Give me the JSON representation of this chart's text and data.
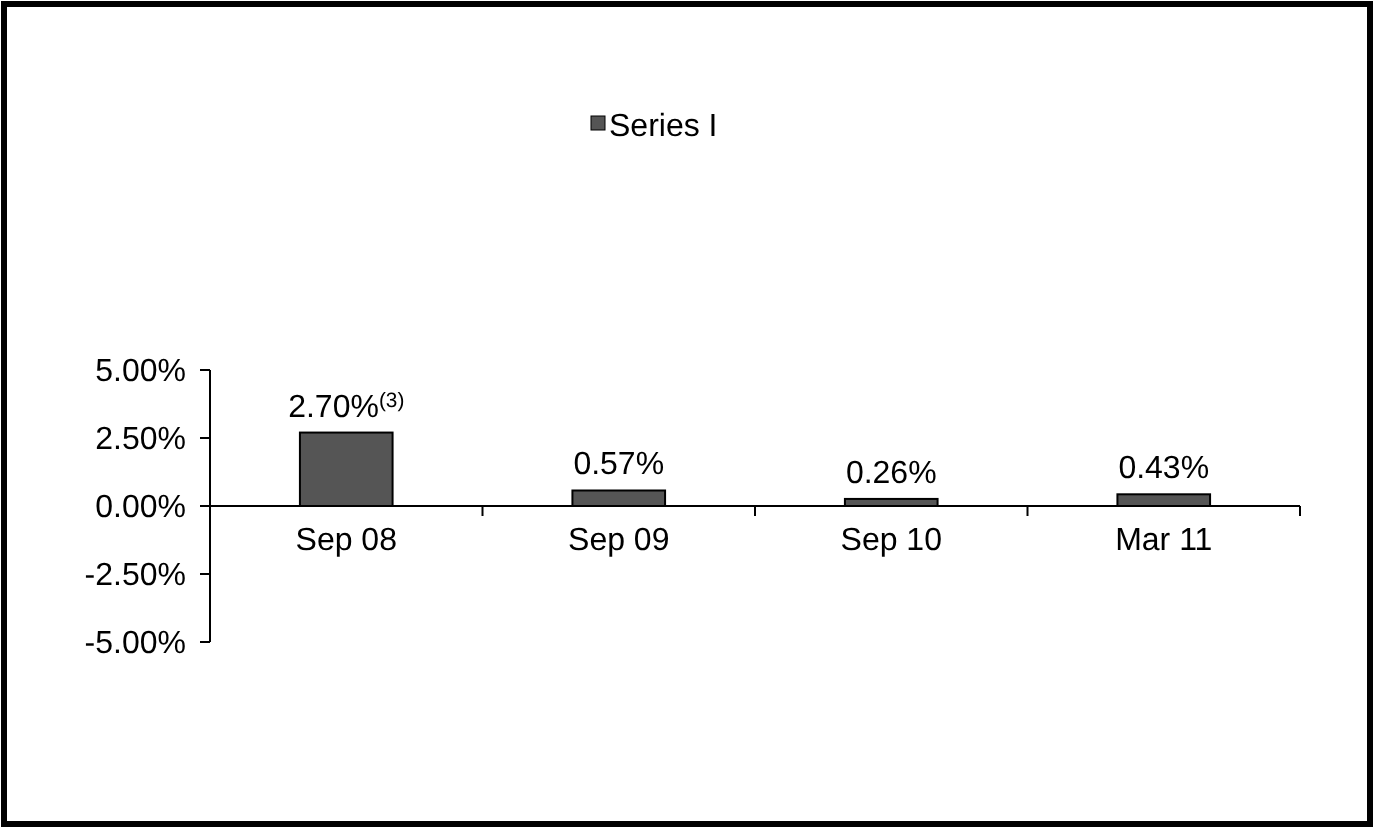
{
  "chart_data": {
    "type": "bar",
    "categories": [
      "Sep 08",
      "Sep 09",
      "Sep 10",
      "Mar 11"
    ],
    "series": [
      {
        "name": "Series I",
        "color": "#555555",
        "values": [
          2.7,
          0.57,
          0.26,
          0.43
        ],
        "value_labels": [
          "2.70%$^{(3)}$",
          "0.57%",
          "0.26%",
          "0.43%"
        ]
      }
    ],
    "ylim": [
      -5,
      5
    ],
    "yticks": [
      {
        "value": 5,
        "label": "5.00%"
      },
      {
        "value": 2.5,
        "label": "2.50%"
      },
      {
        "value": 0,
        "label": "0.00%"
      },
      {
        "value": -2.5,
        "label": "-2.50%"
      },
      {
        "value": -5,
        "label": "-5.00%"
      }
    ],
    "grid": false,
    "legend": "top"
  }
}
